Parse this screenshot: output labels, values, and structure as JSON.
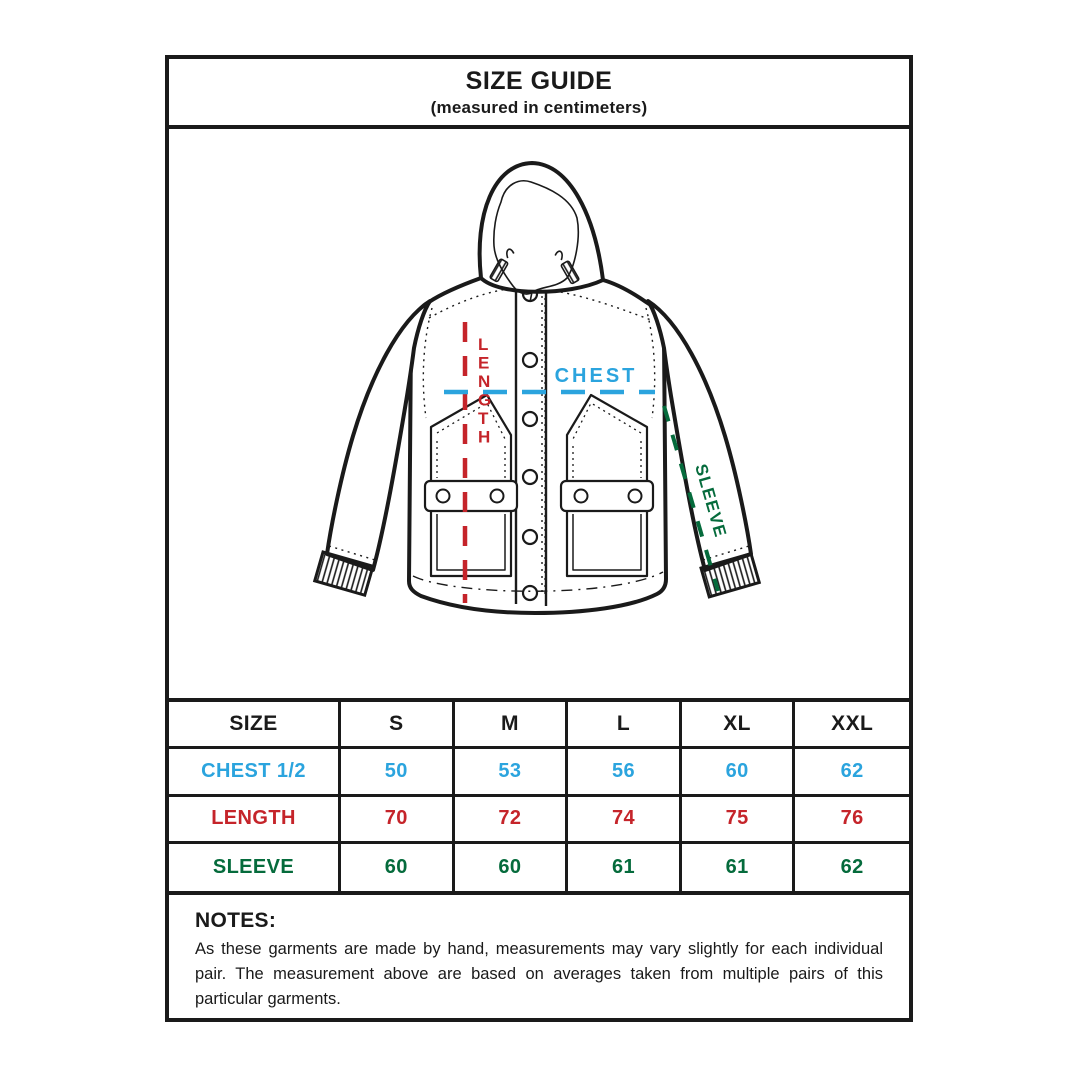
{
  "header": {
    "title": "SIZE GUIDE",
    "subtitle": "(measured in centimeters)"
  },
  "diagram": {
    "labels": {
      "length": "LENGTH",
      "chest": "CHEST",
      "sleeve": "SLEEVE"
    },
    "colors": {
      "length": "#C5242A",
      "chest": "#2BA4DE",
      "sleeve": "#056B3C"
    }
  },
  "table": {
    "columns": [
      "SIZE",
      "S",
      "M",
      "L",
      "XL",
      "XXL"
    ],
    "rows": [
      {
        "label": "CHEST 1/2",
        "color": "#2BA4DE",
        "values": [
          "50",
          "53",
          "56",
          "60",
          "62"
        ]
      },
      {
        "label": "LENGTH",
        "color": "#C5242A",
        "values": [
          "70",
          "72",
          "74",
          "75",
          "76"
        ]
      },
      {
        "label": "SLEEVE",
        "color": "#056B3C",
        "values": [
          "60",
          "60",
          "61",
          "61",
          "62"
        ]
      }
    ]
  },
  "notes": {
    "heading": "NOTES:",
    "body": "As these garments are made by hand, measurements may vary slightly for each individual pair. The measurement above are based on averages taken from multiple pairs of this particular garments."
  }
}
